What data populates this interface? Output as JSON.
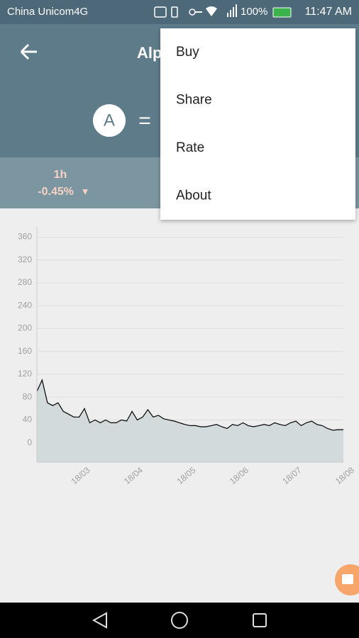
{
  "status_bar": {
    "carrier": "China Unicom4G",
    "battery": "100%",
    "time": "11:47 AM"
  },
  "header": {
    "title": "Alp",
    "symbol": "A",
    "equals": "="
  },
  "stats": {
    "period": "1h",
    "change": "-0.45%",
    "arrow": "▼"
  },
  "menu": {
    "items": [
      "Buy",
      "Share",
      "Rate",
      "About"
    ]
  },
  "chart_data": {
    "type": "area",
    "categories": [
      null,
      null,
      null,
      null,
      null,
      null,
      null,
      null,
      "18/03",
      null,
      null,
      null,
      null,
      null,
      null,
      null,
      null,
      null,
      "18/04",
      null,
      null,
      null,
      null,
      null,
      null,
      null,
      null,
      null,
      "18/05",
      null,
      null,
      null,
      null,
      null,
      null,
      null,
      null,
      null,
      "18/06",
      null,
      null,
      null,
      null,
      null,
      null,
      null,
      null,
      null,
      "18/07",
      null,
      null,
      null,
      null,
      null,
      null,
      null,
      null,
      null,
      "18/08"
    ],
    "values": [
      90,
      110,
      70,
      65,
      70,
      55,
      50,
      45,
      45,
      60,
      35,
      40,
      35,
      40,
      35,
      35,
      40,
      38,
      55,
      40,
      45,
      58,
      45,
      48,
      42,
      40,
      38,
      35,
      32,
      30,
      30,
      28,
      28,
      30,
      32,
      28,
      25,
      32,
      30,
      35,
      30,
      28,
      30,
      32,
      30,
      35,
      32,
      30,
      35,
      38,
      30,
      35,
      38,
      32,
      30,
      25,
      22,
      23,
      23
    ],
    "ylim": [
      -34,
      378
    ],
    "yticks": [
      0,
      40,
      80,
      120,
      160,
      200,
      240,
      280,
      320,
      360
    ],
    "color": "#000000",
    "fill": "#d3dadc",
    "grid": true
  }
}
